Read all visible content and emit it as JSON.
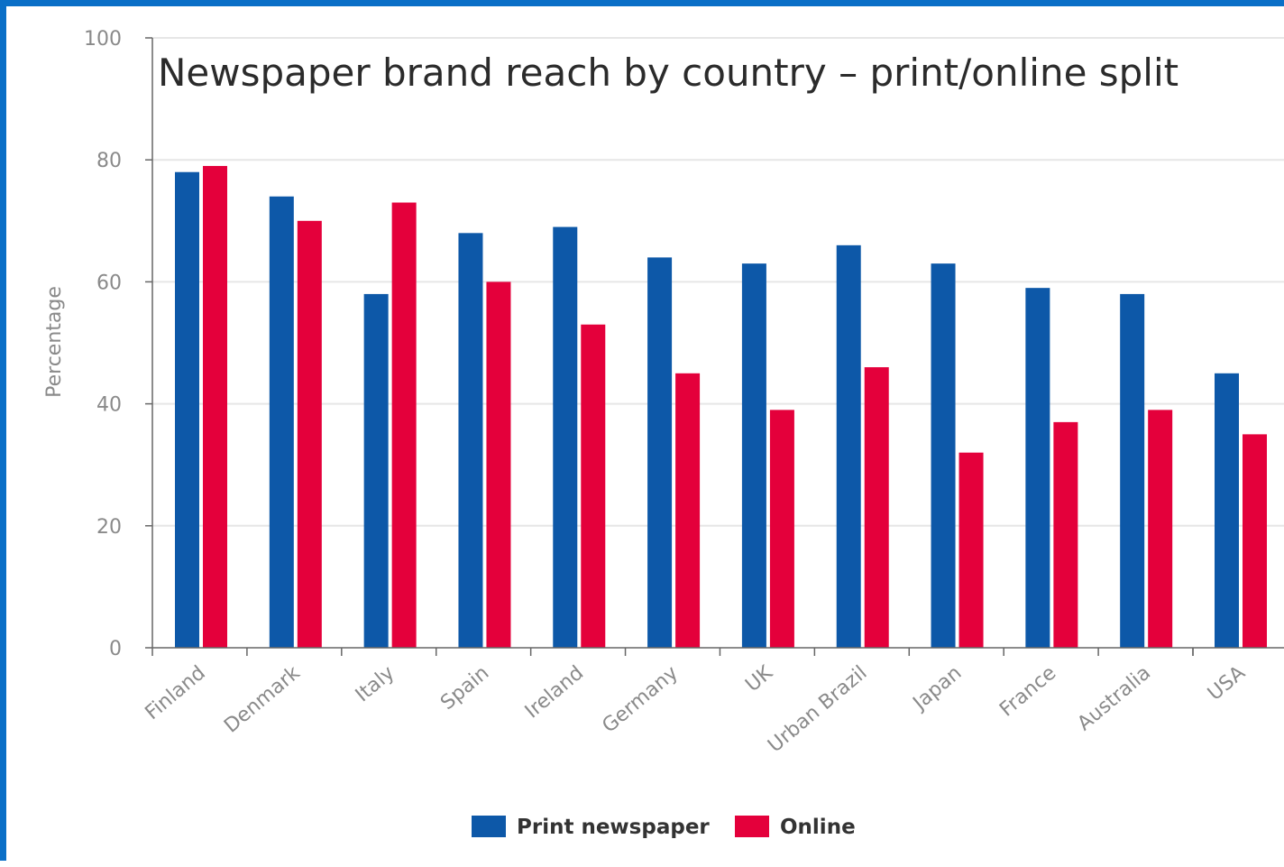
{
  "colors": {
    "frame": "#0a6fc7",
    "print": "#0d58a8",
    "online": "#e4003b",
    "grid": "#e6e6e6",
    "axis": "#666666"
  },
  "chart_data": {
    "type": "bar",
    "title": "Newspaper brand reach by country – print/online split",
    "xlabel": "",
    "ylabel": "Percentage",
    "ylim": [
      0,
      100
    ],
    "yticks": [
      0,
      20,
      40,
      60,
      80,
      100
    ],
    "grid": true,
    "legend_position": "bottom-center",
    "categories": [
      "Finland",
      "Denmark",
      "Italy",
      "Spain",
      "Ireland",
      "Germany",
      "UK",
      "Urban Brazil",
      "Japan",
      "France",
      "Australia",
      "USA"
    ],
    "series": [
      {
        "name": "Print newspaper",
        "color": "#0d58a8",
        "values": [
          78,
          74,
          58,
          68,
          69,
          64,
          63,
          66,
          63,
          59,
          58,
          45
        ]
      },
      {
        "name": "Online",
        "color": "#e4003b",
        "values": [
          79,
          70,
          73,
          60,
          53,
          45,
          39,
          46,
          32,
          37,
          39,
          35
        ]
      }
    ]
  }
}
